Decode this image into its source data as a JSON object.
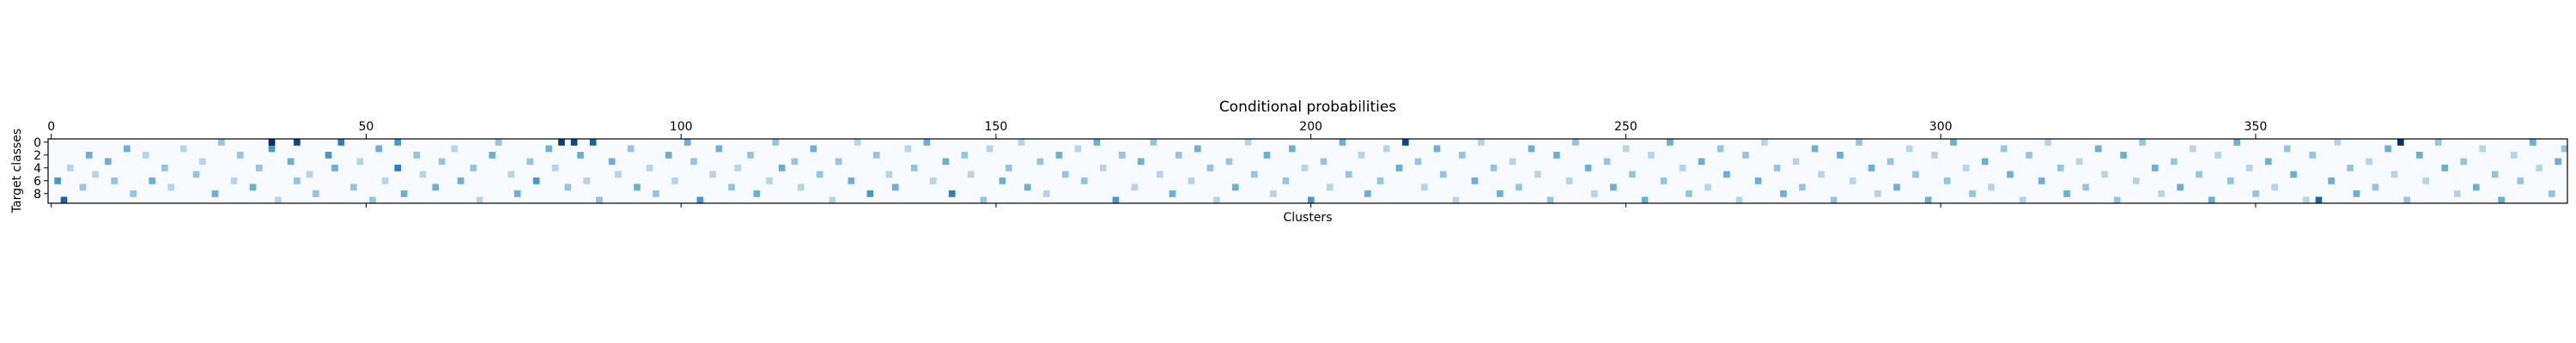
{
  "chart_data": {
    "type": "heatmap",
    "title": "Conditional probabilities",
    "xlabel": "Clusters",
    "ylabel": "Target classes",
    "n_rows": 10,
    "n_cols": 400,
    "x_ticks": [
      0,
      50,
      100,
      150,
      200,
      250,
      300,
      350
    ],
    "y_ticks": [
      0,
      2,
      4,
      6,
      8
    ],
    "colormap": "Blues",
    "value_range": [
      0,
      1
    ],
    "grid": false,
    "cells": [
      [
        1,
        6,
        0.6
      ],
      [
        2,
        9,
        0.8
      ],
      [
        3,
        4,
        0.3
      ],
      [
        5,
        7,
        0.4
      ],
      [
        6,
        2,
        0.5
      ],
      [
        7,
        5,
        0.3
      ],
      [
        9,
        3,
        0.5
      ],
      [
        10,
        6,
        0.4
      ],
      [
        12,
        1,
        0.5
      ],
      [
        13,
        8,
        0.4
      ],
      [
        15,
        2,
        0.3
      ],
      [
        16,
        6,
        0.5
      ],
      [
        18,
        4,
        0.4
      ],
      [
        19,
        7,
        0.3
      ],
      [
        21,
        1,
        0.3
      ],
      [
        23,
        5,
        0.4
      ],
      [
        24,
        3,
        0.3
      ],
      [
        26,
        8,
        0.5
      ],
      [
        27,
        0,
        0.4
      ],
      [
        29,
        6,
        0.3
      ],
      [
        30,
        2,
        0.4
      ],
      [
        32,
        7,
        0.5
      ],
      [
        33,
        4,
        0.4
      ],
      [
        35,
        1,
        0.6
      ],
      [
        35,
        0,
        1.0
      ],
      [
        36,
        9,
        0.3
      ],
      [
        38,
        3,
        0.5
      ],
      [
        39,
        0,
        0.9
      ],
      [
        39,
        6,
        0.4
      ],
      [
        41,
        5,
        0.3
      ],
      [
        42,
        8,
        0.4
      ],
      [
        44,
        2,
        0.6
      ],
      [
        45,
        4,
        0.5
      ],
      [
        46,
        0,
        0.7
      ],
      [
        48,
        7,
        0.4
      ],
      [
        49,
        3,
        0.3
      ],
      [
        51,
        9,
        0.4
      ],
      [
        52,
        1,
        0.5
      ],
      [
        53,
        6,
        0.3
      ],
      [
        55,
        0,
        0.6
      ],
      [
        55,
        4,
        0.7
      ],
      [
        56,
        8,
        0.5
      ],
      [
        58,
        2,
        0.4
      ],
      [
        59,
        5,
        0.3
      ],
      [
        61,
        7,
        0.5
      ],
      [
        62,
        3,
        0.4
      ],
      [
        64,
        1,
        0.3
      ],
      [
        65,
        6,
        0.5
      ],
      [
        67,
        4,
        0.4
      ],
      [
        68,
        9,
        0.3
      ],
      [
        70,
        2,
        0.5
      ],
      [
        71,
        0,
        0.4
      ],
      [
        73,
        5,
        0.3
      ],
      [
        74,
        8,
        0.5
      ],
      [
        76,
        3,
        0.4
      ],
      [
        77,
        6,
        0.6
      ],
      [
        79,
        1,
        0.5
      ],
      [
        80,
        4,
        0.3
      ],
      [
        81,
        0,
        0.95
      ],
      [
        82,
        7,
        0.4
      ],
      [
        83,
        0,
        0.9
      ],
      [
        84,
        2,
        0.5
      ],
      [
        85,
        6,
        0.3
      ],
      [
        86,
        0,
        0.8
      ],
      [
        87,
        9,
        0.4
      ],
      [
        89,
        3,
        0.5
      ],
      [
        90,
        5,
        0.3
      ],
      [
        92,
        1,
        0.4
      ],
      [
        93,
        7,
        0.5
      ],
      [
        95,
        4,
        0.3
      ],
      [
        96,
        8,
        0.4
      ],
      [
        98,
        2,
        0.5
      ],
      [
        99,
        6,
        0.3
      ],
      [
        101,
        0,
        0.5
      ],
      [
        102,
        3,
        0.4
      ],
      [
        103,
        9,
        0.6
      ],
      [
        105,
        5,
        0.3
      ],
      [
        106,
        1,
        0.5
      ],
      [
        108,
        7,
        0.4
      ],
      [
        109,
        4,
        0.3
      ],
      [
        111,
        2,
        0.4
      ],
      [
        112,
        8,
        0.5
      ],
      [
        114,
        6,
        0.3
      ],
      [
        115,
        0,
        0.4
      ],
      [
        116,
        4,
        0.5
      ],
      [
        118,
        3,
        0.4
      ],
      [
        119,
        7,
        0.3
      ],
      [
        121,
        1,
        0.5
      ],
      [
        122,
        5,
        0.4
      ],
      [
        124,
        9,
        0.3
      ],
      [
        125,
        3,
        0.4
      ],
      [
        127,
        6,
        0.5
      ],
      [
        128,
        0,
        0.3
      ],
      [
        130,
        8,
        0.6
      ],
      [
        131,
        2,
        0.4
      ],
      [
        133,
        5,
        0.3
      ],
      [
        134,
        7,
        0.5
      ],
      [
        136,
        1,
        0.3
      ],
      [
        137,
        4,
        0.4
      ],
      [
        139,
        0,
        0.5
      ],
      [
        140,
        6,
        0.3
      ],
      [
        142,
        3,
        0.5
      ],
      [
        143,
        8,
        0.7
      ],
      [
        145,
        2,
        0.4
      ],
      [
        146,
        5,
        0.3
      ],
      [
        148,
        9,
        0.4
      ],
      [
        149,
        1,
        0.3
      ],
      [
        151,
        6,
        0.5
      ],
      [
        152,
        4,
        0.4
      ],
      [
        154,
        0,
        0.3
      ],
      [
        155,
        7,
        0.5
      ],
      [
        157,
        3,
        0.4
      ],
      [
        158,
        8,
        0.3
      ],
      [
        160,
        2,
        0.5
      ],
      [
        161,
        5,
        0.4
      ],
      [
        163,
        1,
        0.3
      ],
      [
        164,
        6,
        0.4
      ],
      [
        166,
        0,
        0.5
      ],
      [
        167,
        4,
        0.3
      ],
      [
        169,
        9,
        0.6
      ],
      [
        170,
        2,
        0.4
      ],
      [
        172,
        7,
        0.3
      ],
      [
        173,
        3,
        0.5
      ],
      [
        175,
        0,
        0.4
      ],
      [
        176,
        5,
        0.3
      ],
      [
        178,
        8,
        0.5
      ],
      [
        179,
        2,
        0.4
      ],
      [
        181,
        6,
        0.3
      ],
      [
        182,
        1,
        0.5
      ],
      [
        184,
        4,
        0.4
      ],
      [
        185,
        9,
        0.3
      ],
      [
        187,
        3,
        0.4
      ],
      [
        188,
        7,
        0.5
      ],
      [
        190,
        0,
        0.3
      ],
      [
        191,
        5,
        0.4
      ],
      [
        193,
        2,
        0.5
      ],
      [
        194,
        8,
        0.3
      ],
      [
        196,
        6,
        0.4
      ],
      [
        197,
        1,
        0.5
      ],
      [
        199,
        4,
        0.3
      ],
      [
        200,
        9,
        0.6
      ],
      [
        202,
        3,
        0.4
      ],
      [
        203,
        7,
        0.3
      ],
      [
        205,
        0,
        0.5
      ],
      [
        206,
        5,
        0.4
      ],
      [
        208,
        2,
        0.3
      ],
      [
        209,
        8,
        0.5
      ],
      [
        211,
        6,
        0.4
      ],
      [
        212,
        1,
        0.3
      ],
      [
        214,
        4,
        0.5
      ],
      [
        215,
        0,
        0.9
      ],
      [
        217,
        3,
        0.4
      ],
      [
        218,
        7,
        0.3
      ],
      [
        220,
        1,
        0.5
      ],
      [
        221,
        5,
        0.4
      ],
      [
        223,
        9,
        0.3
      ],
      [
        224,
        2,
        0.4
      ],
      [
        226,
        6,
        0.5
      ],
      [
        227,
        0,
        0.3
      ],
      [
        229,
        4,
        0.4
      ],
      [
        230,
        8,
        0.5
      ],
      [
        232,
        3,
        0.3
      ],
      [
        233,
        7,
        0.4
      ],
      [
        235,
        1,
        0.5
      ],
      [
        236,
        5,
        0.3
      ],
      [
        238,
        9,
        0.4
      ],
      [
        239,
        2,
        0.5
      ],
      [
        241,
        6,
        0.3
      ],
      [
        242,
        0,
        0.4
      ],
      [
        244,
        4,
        0.5
      ],
      [
        245,
        8,
        0.3
      ],
      [
        247,
        3,
        0.4
      ],
      [
        248,
        7,
        0.5
      ],
      [
        250,
        1,
        0.3
      ],
      [
        251,
        5,
        0.4
      ],
      [
        253,
        9,
        0.5
      ],
      [
        254,
        2,
        0.3
      ],
      [
        256,
        6,
        0.4
      ],
      [
        257,
        0,
        0.5
      ],
      [
        259,
        4,
        0.3
      ],
      [
        260,
        8,
        0.4
      ],
      [
        262,
        3,
        0.5
      ],
      [
        263,
        7,
        0.3
      ],
      [
        265,
        1,
        0.4
      ],
      [
        266,
        5,
        0.5
      ],
      [
        268,
        9,
        0.3
      ],
      [
        269,
        2,
        0.4
      ],
      [
        271,
        6,
        0.5
      ],
      [
        272,
        0,
        0.3
      ],
      [
        274,
        4,
        0.4
      ],
      [
        275,
        8,
        0.5
      ],
      [
        277,
        3,
        0.3
      ],
      [
        278,
        7,
        0.4
      ],
      [
        280,
        1,
        0.5
      ],
      [
        281,
        5,
        0.3
      ],
      [
        283,
        9,
        0.4
      ],
      [
        284,
        2,
        0.5
      ],
      [
        286,
        6,
        0.3
      ],
      [
        287,
        0,
        0.4
      ],
      [
        289,
        4,
        0.5
      ],
      [
        290,
        8,
        0.3
      ],
      [
        292,
        3,
        0.4
      ],
      [
        293,
        7,
        0.5
      ],
      [
        295,
        1,
        0.3
      ],
      [
        296,
        5,
        0.4
      ],
      [
        298,
        9,
        0.5
      ],
      [
        299,
        2,
        0.3
      ],
      [
        301,
        6,
        0.4
      ],
      [
        302,
        0,
        0.5
      ],
      [
        304,
        4,
        0.3
      ],
      [
        305,
        8,
        0.4
      ],
      [
        307,
        3,
        0.5
      ],
      [
        308,
        7,
        0.3
      ],
      [
        310,
        1,
        0.4
      ],
      [
        311,
        5,
        0.5
      ],
      [
        313,
        9,
        0.3
      ],
      [
        314,
        2,
        0.4
      ],
      [
        316,
        6,
        0.5
      ],
      [
        317,
        0,
        0.3
      ],
      [
        319,
        4,
        0.4
      ],
      [
        320,
        8,
        0.5
      ],
      [
        322,
        3,
        0.3
      ],
      [
        323,
        7,
        0.4
      ],
      [
        325,
        1,
        0.5
      ],
      [
        326,
        5,
        0.3
      ],
      [
        328,
        9,
        0.4
      ],
      [
        329,
        2,
        0.5
      ],
      [
        331,
        6,
        0.3
      ],
      [
        332,
        0,
        0.4
      ],
      [
        334,
        4,
        0.5
      ],
      [
        335,
        8,
        0.3
      ],
      [
        337,
        3,
        0.4
      ],
      [
        338,
        7,
        0.5
      ],
      [
        340,
        1,
        0.3
      ],
      [
        341,
        5,
        0.4
      ],
      [
        343,
        9,
        0.5
      ],
      [
        344,
        2,
        0.3
      ],
      [
        346,
        6,
        0.4
      ],
      [
        347,
        0,
        0.5
      ],
      [
        349,
        4,
        0.3
      ],
      [
        350,
        8,
        0.4
      ],
      [
        352,
        3,
        0.5
      ],
      [
        353,
        7,
        0.3
      ],
      [
        355,
        1,
        0.4
      ],
      [
        356,
        5,
        0.5
      ],
      [
        358,
        9,
        0.3
      ],
      [
        359,
        2,
        0.4
      ],
      [
        360,
        9,
        0.8
      ],
      [
        362,
        6,
        0.5
      ],
      [
        363,
        0,
        0.3
      ],
      [
        365,
        4,
        0.4
      ],
      [
        366,
        8,
        0.5
      ],
      [
        368,
        3,
        0.3
      ],
      [
        369,
        7,
        0.4
      ],
      [
        371,
        1,
        0.5
      ],
      [
        372,
        5,
        0.3
      ],
      [
        373,
        0,
        1.0
      ],
      [
        374,
        9,
        0.4
      ],
      [
        376,
        2,
        0.5
      ],
      [
        377,
        6,
        0.3
      ],
      [
        379,
        0,
        0.4
      ],
      [
        380,
        4,
        0.5
      ],
      [
        382,
        8,
        0.3
      ],
      [
        383,
        3,
        0.4
      ],
      [
        385,
        7,
        0.5
      ],
      [
        386,
        1,
        0.3
      ],
      [
        388,
        5,
        0.4
      ],
      [
        389,
        9,
        0.5
      ],
      [
        391,
        2,
        0.3
      ],
      [
        392,
        6,
        0.4
      ],
      [
        394,
        0,
        0.5
      ],
      [
        395,
        4,
        0.3
      ],
      [
        397,
        8,
        0.4
      ],
      [
        398,
        3,
        0.5
      ],
      [
        399,
        1,
        0.4
      ]
    ]
  }
}
